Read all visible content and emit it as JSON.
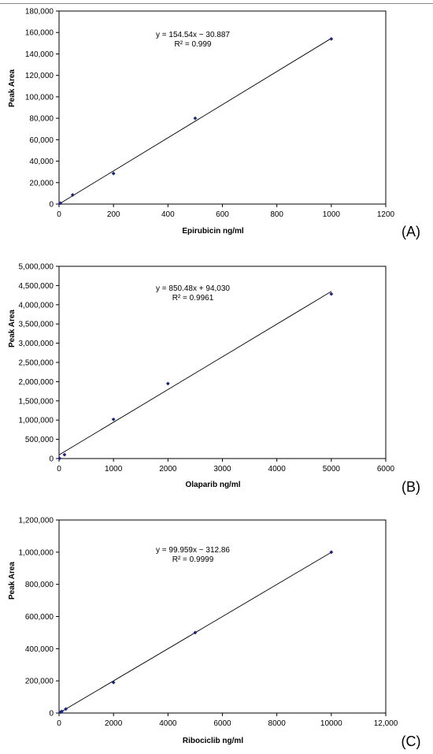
{
  "chart_data": [
    {
      "type": "scatter",
      "panel_label": "(A)",
      "xlabel": "Epirubicin ng/ml",
      "ylabel": "Peak Area",
      "xlim": [
        0,
        1200
      ],
      "ylim": [
        0,
        180000
      ],
      "xticks": [
        "0",
        "200",
        "400",
        "600",
        "800",
        "1000",
        "1200"
      ],
      "yticks": [
        "0",
        "20,000",
        "40,000",
        "60,000",
        "80,000",
        "100,000",
        "120,000",
        "140,000",
        "160,000",
        "180,000"
      ],
      "points": [
        [
          5,
          800
        ],
        [
          50,
          8500
        ],
        [
          200,
          28500
        ],
        [
          500,
          80000
        ],
        [
          1000,
          154000
        ]
      ],
      "trendline": {
        "slope": 154.54,
        "intercept": -30.887,
        "x_range": [
          0,
          1000
        ]
      },
      "equation": "y = 154.54x − 30.887",
      "r_squared": "R² = 0.999",
      "grid": false,
      "marker_color": "#1a237e"
    },
    {
      "type": "scatter",
      "panel_label": "(B)",
      "xlabel": "Olaparib ng/ml",
      "ylabel": "Peak Area",
      "xlim": [
        0,
        6000
      ],
      "ylim": [
        0,
        5000000
      ],
      "xticks": [
        "0",
        "1000",
        "2000",
        "3000",
        "4000",
        "5000",
        "6000"
      ],
      "yticks": [
        "0",
        "500,000",
        "1,000,000",
        "1,500,000",
        "2,000,000",
        "2,500,000",
        "3,000,000",
        "3,500,000",
        "4,000,000",
        "4,500,000",
        "5,000,000"
      ],
      "points": [
        [
          10,
          5000
        ],
        [
          100,
          100000
        ],
        [
          1000,
          1020000
        ],
        [
          2000,
          1950000
        ],
        [
          5000,
          4280000
        ]
      ],
      "trendline": {
        "slope": 850.48,
        "intercept": 94030,
        "x_range": [
          0,
          5000
        ]
      },
      "equation": "y = 850.48x + 94,030",
      "r_squared": "R² = 0.9961",
      "grid": false,
      "marker_color": "#1a237e"
    },
    {
      "type": "scatter",
      "panel_label": "(C)",
      "xlabel": "Ribociclib ng/ml",
      "ylabel": "Peak Area",
      "xlim": [
        0,
        12000
      ],
      "ylim": [
        0,
        1200000
      ],
      "xticks": [
        "0",
        "2000",
        "4000",
        "6000",
        "8000",
        "10000",
        "12,000"
      ],
      "yticks": [
        "0",
        "200,000",
        "400,000",
        "600,000",
        "800,000",
        "1,000,000",
        "1,200,000"
      ],
      "points": [
        [
          50,
          5000
        ],
        [
          100,
          10000
        ],
        [
          250,
          25000
        ],
        [
          2000,
          190000
        ],
        [
          5000,
          500000
        ],
        [
          10000,
          1000000
        ]
      ],
      "trendline": {
        "slope": 99.959,
        "intercept": -312.86,
        "x_range": [
          0,
          10000
        ]
      },
      "equation": "y = 99.959x − 312.86",
      "r_squared": "R² = 0.9999",
      "grid": false,
      "marker_color": "#1a237e"
    }
  ]
}
